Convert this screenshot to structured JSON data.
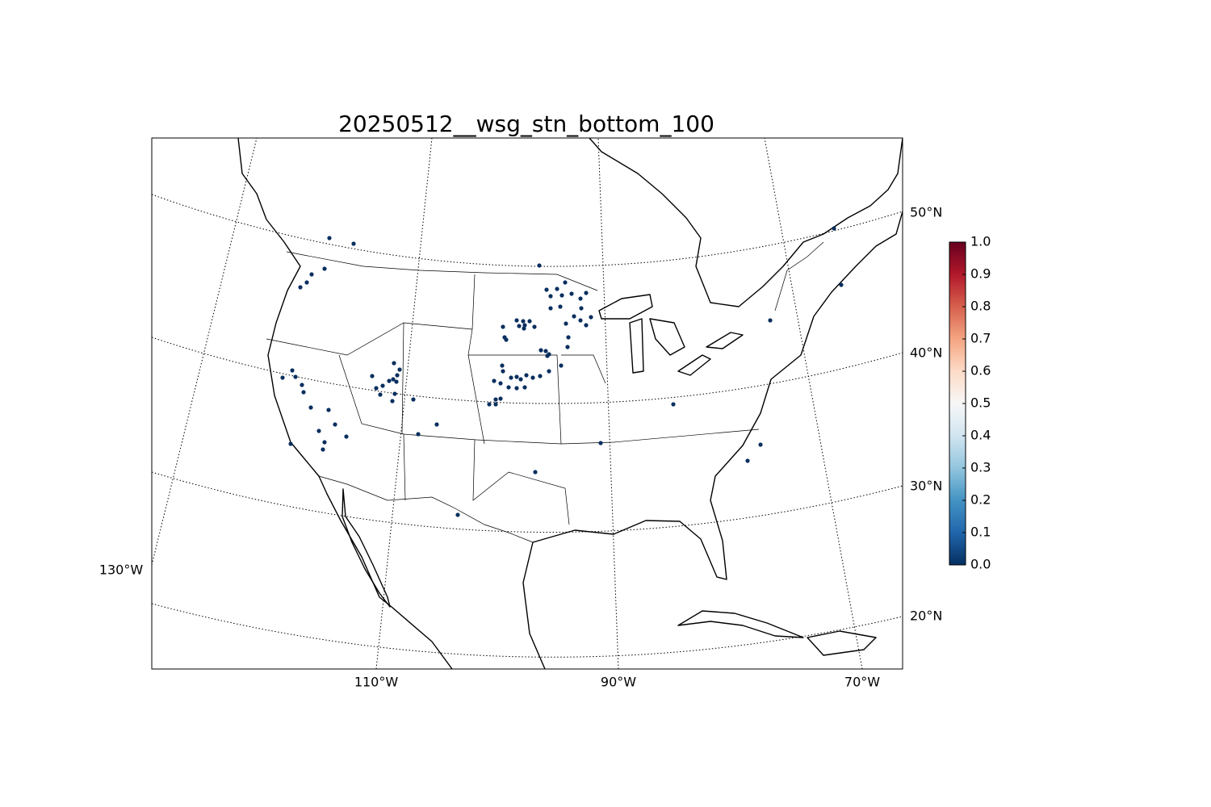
{
  "chart_data": {
    "type": "station-map",
    "title": "20250512__wsg_stn_bottom_100",
    "latitudes": [
      {
        "value": 50,
        "label": "50°N"
      },
      {
        "value": 40,
        "label": "40°N"
      },
      {
        "value": 30,
        "label": "30°N"
      },
      {
        "value": 20,
        "label": "20°N"
      }
    ],
    "longitudes": [
      {
        "value": -130,
        "label": "130°W"
      },
      {
        "value": -110,
        "label": "110°W"
      },
      {
        "value": -90,
        "label": "90°W"
      },
      {
        "value": -70,
        "label": "70°W"
      }
    ],
    "colorbar": {
      "colormap": "RdBu_r",
      "lim": [
        0,
        1
      ],
      "ticks": [
        {
          "value": 0,
          "label": "0.0"
        },
        0.1,
        0.2,
        0.3,
        0.4,
        0.5,
        0.6,
        0.7,
        0.8,
        0.9,
        {
          "value": 1,
          "label": "1.0"
        }
      ]
    }
  }
}
